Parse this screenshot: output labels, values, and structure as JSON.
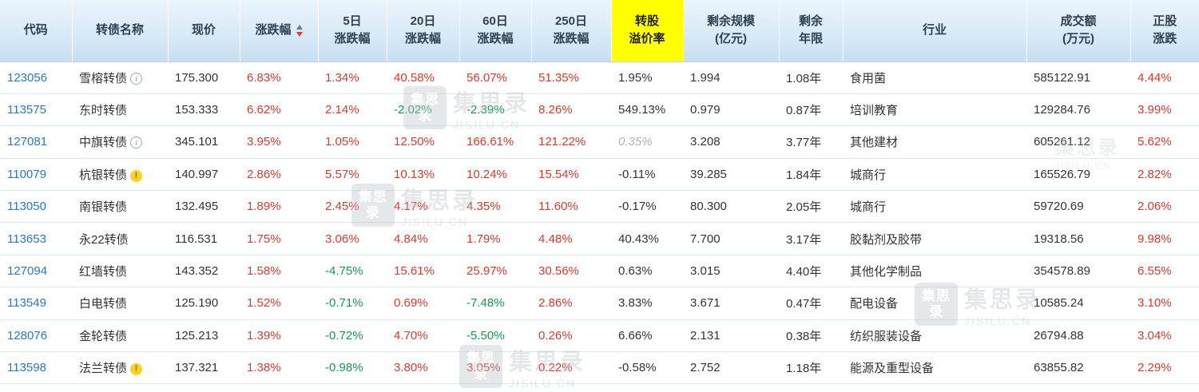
{
  "colors": {
    "positive_red": "#e0392a",
    "negative_green": "#0f9d4a",
    "code_blue": "#2679c6",
    "header_text": "#2f4050",
    "highlight_yellow": "#ffff00"
  },
  "icons": {
    "info": "i",
    "warn": "!"
  },
  "watermark": {
    "logo_text": "集思录",
    "site": "JISILU.CN"
  },
  "table": {
    "sort": {
      "column": "涨跌幅",
      "direction": "desc"
    },
    "signed_columns": [
      "chg",
      "chg5",
      "chg20",
      "chg60",
      "chg250",
      "stock_chg"
    ],
    "columns": [
      {
        "key": "code",
        "label": "代码"
      },
      {
        "key": "name",
        "label": "转债名称"
      },
      {
        "key": "price",
        "label": "现价"
      },
      {
        "key": "chg",
        "label": "涨跌幅"
      },
      {
        "key": "chg5",
        "label": "5日\n涨跌幅"
      },
      {
        "key": "chg20",
        "label": "20日\n涨跌幅"
      },
      {
        "key": "chg60",
        "label": "60日\n涨跌幅"
      },
      {
        "key": "chg250",
        "label": "250日\n涨跌幅"
      },
      {
        "key": "premium",
        "label": "转股\n溢价率"
      },
      {
        "key": "size",
        "label": "剩余规模\n(亿元)"
      },
      {
        "key": "years",
        "label": "剩余\n年限"
      },
      {
        "key": "industry",
        "label": "行业"
      },
      {
        "key": "turnover",
        "label": "成交额\n(万元)"
      },
      {
        "key": "stock_chg",
        "label": "正股\n涨跌"
      }
    ],
    "rows": [
      {
        "code": "123056",
        "name": "雪榕转债",
        "flag": "info",
        "price": "175.300",
        "chg": "6.83%",
        "chg5": "1.34%",
        "chg20": "40.58%",
        "chg60": "56.07%",
        "chg250": "51.35%",
        "premium": "1.95%",
        "premium_muted": false,
        "size": "1.994",
        "years": "1.08年",
        "industry": "食用菌",
        "turnover": "585122.91",
        "stock_chg": "4.44%"
      },
      {
        "code": "113575",
        "name": "东时转债",
        "flag": null,
        "price": "153.333",
        "chg": "6.62%",
        "chg5": "2.14%",
        "chg20": "-2.02%",
        "chg60": "-2.39%",
        "chg250": "8.26%",
        "premium": "549.13%",
        "premium_muted": false,
        "size": "0.979",
        "years": "0.87年",
        "industry": "培训教育",
        "turnover": "129284.76",
        "stock_chg": "3.99%"
      },
      {
        "code": "127081",
        "name": "中旗转债",
        "flag": "info",
        "price": "345.101",
        "chg": "3.95%",
        "chg5": "1.05%",
        "chg20": "12.50%",
        "chg60": "166.61%",
        "chg250": "121.22%",
        "premium": "0.35%",
        "premium_muted": true,
        "size": "3.208",
        "years": "3.77年",
        "industry": "其他建材",
        "turnover": "605261.12",
        "stock_chg": "5.62%"
      },
      {
        "code": "110079",
        "name": "杭银转债",
        "flag": "warn",
        "price": "140.997",
        "chg": "2.86%",
        "chg5": "5.57%",
        "chg20": "10.13%",
        "chg60": "10.24%",
        "chg250": "15.54%",
        "premium": "-0.11%",
        "premium_muted": false,
        "size": "39.285",
        "years": "1.84年",
        "industry": "城商行",
        "turnover": "165526.79",
        "stock_chg": "2.82%"
      },
      {
        "code": "113050",
        "name": "南银转债",
        "flag": null,
        "price": "132.495",
        "chg": "1.89%",
        "chg5": "2.45%",
        "chg20": "4.17%",
        "chg60": "4.35%",
        "chg250": "11.60%",
        "premium": "-0.17%",
        "premium_muted": false,
        "size": "80.300",
        "years": "2.05年",
        "industry": "城商行",
        "turnover": "59720.69",
        "stock_chg": "2.06%"
      },
      {
        "code": "113653",
        "name": "永22转债",
        "flag": null,
        "price": "116.531",
        "chg": "1.75%",
        "chg5": "3.06%",
        "chg20": "4.84%",
        "chg60": "1.79%",
        "chg250": "4.48%",
        "premium": "40.43%",
        "premium_muted": false,
        "size": "7.700",
        "years": "3.17年",
        "industry": "胶黏剂及胶带",
        "turnover": "19318.56",
        "stock_chg": "9.98%"
      },
      {
        "code": "127094",
        "name": "红墙转债",
        "flag": null,
        "price": "143.352",
        "chg": "1.58%",
        "chg5": "-4.75%",
        "chg20": "15.61%",
        "chg60": "25.97%",
        "chg250": "30.56%",
        "premium": "0.63%",
        "premium_muted": false,
        "size": "3.015",
        "years": "4.40年",
        "industry": "其他化学制品",
        "turnover": "354578.89",
        "stock_chg": "6.55%"
      },
      {
        "code": "113549",
        "name": "白电转债",
        "flag": null,
        "price": "125.190",
        "chg": "1.52%",
        "chg5": "-0.71%",
        "chg20": "0.69%",
        "chg60": "-7.48%",
        "chg250": "2.86%",
        "premium": "3.83%",
        "premium_muted": false,
        "size": "3.671",
        "years": "0.47年",
        "industry": "配电设备",
        "turnover": "10585.24",
        "stock_chg": "3.10%"
      },
      {
        "code": "128076",
        "name": "金轮转债",
        "flag": null,
        "price": "125.213",
        "chg": "1.39%",
        "chg5": "-0.72%",
        "chg20": "4.70%",
        "chg60": "-5.50%",
        "chg250": "0.26%",
        "premium": "6.66%",
        "premium_muted": false,
        "size": "2.131",
        "years": "0.38年",
        "industry": "纺织服装设备",
        "turnover": "26794.88",
        "stock_chg": "3.04%"
      },
      {
        "code": "113598",
        "name": "法兰转债",
        "flag": "warn",
        "price": "137.321",
        "chg": "1.38%",
        "chg5": "-0.98%",
        "chg20": "3.80%",
        "chg60": "3.05%",
        "chg250": "0.22%",
        "premium": "-0.58%",
        "premium_muted": false,
        "size": "2.752",
        "years": "1.18年",
        "industry": "能源及重型设备",
        "turnover": "63855.82",
        "stock_chg": "2.29%"
      }
    ]
  }
}
